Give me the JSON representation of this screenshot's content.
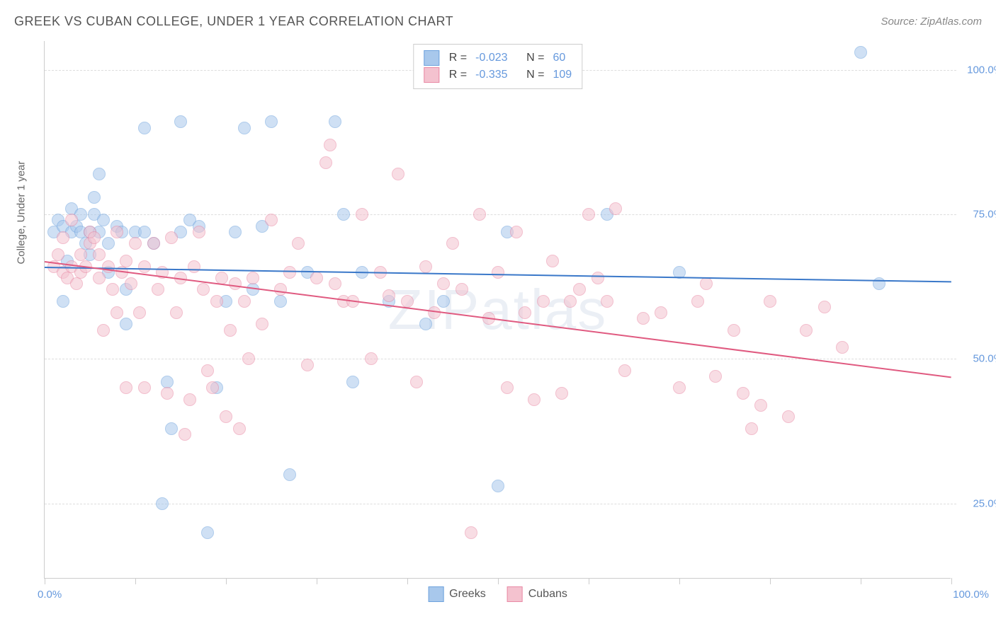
{
  "title": "GREEK VS CUBAN COLLEGE, UNDER 1 YEAR CORRELATION CHART",
  "source": "Source: ZipAtlas.com",
  "watermark": "ZIPatlas",
  "chart": {
    "type": "scatter",
    "xlim": [
      0,
      100
    ],
    "ylim": [
      12,
      105
    ],
    "x_axis_labels": {
      "left": "0.0%",
      "right": "100.0%"
    },
    "x_tick_positions": [
      0,
      10,
      20,
      30,
      40,
      50,
      60,
      70,
      80,
      90,
      100
    ],
    "y_gridlines": [
      25,
      50,
      75,
      100
    ],
    "y_axis_labels": {
      "25": "25.0%",
      "50": "50.0%",
      "75": "75.0%",
      "100": "100.0%"
    },
    "ylabel": "College, Under 1 year",
    "background_color": "#ffffff",
    "grid_color": "#dddddd",
    "axis_color": "#cccccc",
    "label_color": "#6699dd",
    "title_fontsize": 18,
    "label_fontsize": 15,
    "marker_radius": 9,
    "marker_opacity": 0.55,
    "series": [
      {
        "name": "Greeks",
        "fill_color": "#a8c8ec",
        "stroke_color": "#6fa3dd",
        "trend_color": "#3a78c9",
        "trend": {
          "x1": 0,
          "y1": 66,
          "x2": 100,
          "y2": 63.5
        },
        "R_label": "R =",
        "R": "-0.023",
        "N_label": "N =",
        "N": "60",
        "points": [
          [
            1,
            72
          ],
          [
            1.5,
            74
          ],
          [
            2,
            73
          ],
          [
            2.5,
            67
          ],
          [
            2,
            60
          ],
          [
            3,
            76
          ],
          [
            3,
            72
          ],
          [
            3.5,
            73
          ],
          [
            4,
            75
          ],
          [
            4,
            72
          ],
          [
            4.5,
            70
          ],
          [
            5,
            72
          ],
          [
            5,
            68
          ],
          [
            5.5,
            75
          ],
          [
            5.5,
            78
          ],
          [
            6,
            82
          ],
          [
            6,
            72
          ],
          [
            6.5,
            74
          ],
          [
            7,
            70
          ],
          [
            7,
            65
          ],
          [
            8,
            73
          ],
          [
            8.5,
            72
          ],
          [
            9,
            62
          ],
          [
            9,
            56
          ],
          [
            10,
            72
          ],
          [
            11,
            90
          ],
          [
            11,
            72
          ],
          [
            12,
            70
          ],
          [
            13,
            25
          ],
          [
            13.5,
            46
          ],
          [
            14,
            38
          ],
          [
            15,
            91
          ],
          [
            15,
            72
          ],
          [
            16,
            74
          ],
          [
            17,
            73
          ],
          [
            18,
            20
          ],
          [
            19,
            45
          ],
          [
            20,
            60
          ],
          [
            21,
            72
          ],
          [
            22,
            90
          ],
          [
            23,
            62
          ],
          [
            24,
            73
          ],
          [
            25,
            91
          ],
          [
            26,
            60
          ],
          [
            27,
            30
          ],
          [
            29,
            65
          ],
          [
            32,
            91
          ],
          [
            33,
            75
          ],
          [
            34,
            46
          ],
          [
            35,
            65
          ],
          [
            38,
            60
          ],
          [
            42,
            56
          ],
          [
            44,
            60
          ],
          [
            50,
            28
          ],
          [
            51,
            72
          ],
          [
            55,
            98
          ],
          [
            62,
            75
          ],
          [
            70,
            65
          ],
          [
            90,
            103
          ],
          [
            92,
            63
          ]
        ]
      },
      {
        "name": "Cubans",
        "fill_color": "#f4c2cf",
        "stroke_color": "#e98aa5",
        "trend_color": "#e05a80",
        "trend": {
          "x1": 0,
          "y1": 67,
          "x2": 100,
          "y2": 47
        },
        "R_label": "R =",
        "R": "-0.335",
        "N_label": "N =",
        "N": "109",
        "points": [
          [
            1,
            66
          ],
          [
            1.5,
            68
          ],
          [
            2,
            65
          ],
          [
            2,
            71
          ],
          [
            2.5,
            64
          ],
          [
            3,
            66
          ],
          [
            3,
            74
          ],
          [
            3.5,
            63
          ],
          [
            4,
            68
          ],
          [
            4,
            65
          ],
          [
            4.5,
            66
          ],
          [
            5,
            70
          ],
          [
            5,
            72
          ],
          [
            5.5,
            71
          ],
          [
            6,
            68
          ],
          [
            6,
            64
          ],
          [
            6.5,
            55
          ],
          [
            7,
            66
          ],
          [
            7.5,
            62
          ],
          [
            8,
            72
          ],
          [
            8,
            58
          ],
          [
            8.5,
            65
          ],
          [
            9,
            67
          ],
          [
            9,
            45
          ],
          [
            9.5,
            63
          ],
          [
            10,
            70
          ],
          [
            10.5,
            58
          ],
          [
            11,
            66
          ],
          [
            11,
            45
          ],
          [
            12,
            70
          ],
          [
            12.5,
            62
          ],
          [
            13,
            65
          ],
          [
            13.5,
            44
          ],
          [
            14,
            71
          ],
          [
            14.5,
            58
          ],
          [
            15,
            64
          ],
          [
            15.5,
            37
          ],
          [
            16,
            43
          ],
          [
            16.5,
            66
          ],
          [
            17,
            72
          ],
          [
            17.5,
            62
          ],
          [
            18,
            48
          ],
          [
            18.5,
            45
          ],
          [
            19,
            60
          ],
          [
            19.5,
            64
          ],
          [
            20,
            40
          ],
          [
            20.5,
            55
          ],
          [
            21,
            63
          ],
          [
            21.5,
            38
          ],
          [
            22,
            60
          ],
          [
            22.5,
            50
          ],
          [
            23,
            64
          ],
          [
            24,
            56
          ],
          [
            25,
            74
          ],
          [
            26,
            62
          ],
          [
            27,
            65
          ],
          [
            28,
            70
          ],
          [
            29,
            49
          ],
          [
            30,
            64
          ],
          [
            31,
            84
          ],
          [
            31.5,
            87
          ],
          [
            32,
            63
          ],
          [
            33,
            60
          ],
          [
            34,
            60
          ],
          [
            35,
            75
          ],
          [
            36,
            50
          ],
          [
            37,
            65
          ],
          [
            38,
            61
          ],
          [
            39,
            82
          ],
          [
            40,
            60
          ],
          [
            41,
            46
          ],
          [
            42,
            66
          ],
          [
            43,
            58
          ],
          [
            44,
            63
          ],
          [
            45,
            70
          ],
          [
            46,
            62
          ],
          [
            47,
            20
          ],
          [
            48,
            75
          ],
          [
            49,
            57
          ],
          [
            50,
            65
          ],
          [
            51,
            45
          ],
          [
            52,
            72
          ],
          [
            53,
            58
          ],
          [
            54,
            43
          ],
          [
            55,
            60
          ],
          [
            56,
            67
          ],
          [
            57,
            44
          ],
          [
            58,
            60
          ],
          [
            59,
            62
          ],
          [
            60,
            75
          ],
          [
            61,
            64
          ],
          [
            62,
            60
          ],
          [
            63,
            76
          ],
          [
            64,
            48
          ],
          [
            66,
            57
          ],
          [
            68,
            58
          ],
          [
            70,
            45
          ],
          [
            72,
            60
          ],
          [
            73,
            63
          ],
          [
            74,
            47
          ],
          [
            76,
            55
          ],
          [
            77,
            44
          ],
          [
            78,
            38
          ],
          [
            79,
            42
          ],
          [
            80,
            60
          ],
          [
            82,
            40
          ],
          [
            84,
            55
          ],
          [
            86,
            59
          ],
          [
            88,
            52
          ]
        ]
      }
    ],
    "legend_bottom": [
      {
        "swatch_fill": "#a8c8ec",
        "swatch_stroke": "#6fa3dd",
        "label": "Greeks"
      },
      {
        "swatch_fill": "#f4c2cf",
        "swatch_stroke": "#e98aa5",
        "label": "Cubans"
      }
    ]
  }
}
